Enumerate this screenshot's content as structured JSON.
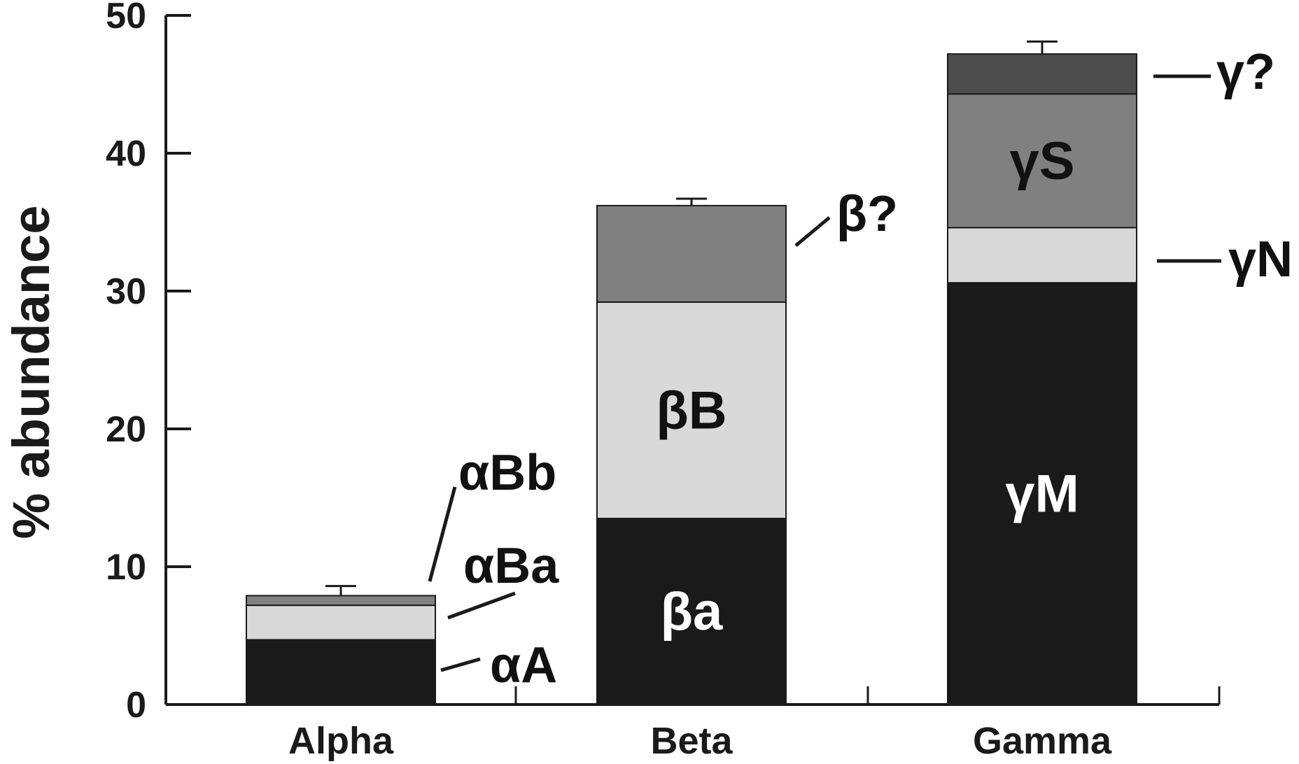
{
  "chart_data": {
    "type": "bar",
    "stacked": true,
    "ylabel": "% abundance",
    "xlabel": "",
    "ylim": [
      0,
      50
    ],
    "yticks": [
      "0",
      "10",
      "20",
      "30",
      "40",
      "50"
    ],
    "grid": false,
    "categories": [
      {
        "name": "Alpha",
        "error": 0.7,
        "segments": [
          {
            "label": "αA",
            "value": 4.7,
            "color": "#1a1a1a",
            "label_color": "#111111",
            "label_placement": "outside"
          },
          {
            "label": "αBa",
            "value": 2.5,
            "color": "#d9d9d9",
            "label_color": "#111111",
            "label_placement": "outside"
          },
          {
            "label": "αBb",
            "value": 0.7,
            "color": "#808080",
            "label_color": "#111111",
            "label_placement": "outside"
          }
        ]
      },
      {
        "name": "Beta",
        "error": 0.5,
        "segments": [
          {
            "label": "βa",
            "value": 13.5,
            "color": "#1a1a1a",
            "label_color": "#ffffff",
            "label_placement": "inside"
          },
          {
            "label": "βB",
            "value": 15.7,
            "color": "#d9d9d9",
            "label_color": "#111111",
            "label_placement": "inside"
          },
          {
            "label": "β?",
            "value": 7.0,
            "color": "#808080",
            "label_color": "#111111",
            "label_placement": "outside"
          }
        ]
      },
      {
        "name": "Gamma",
        "error": 0.9,
        "segments": [
          {
            "label": "γM",
            "value": 30.6,
            "color": "#1a1a1a",
            "label_color": "#ffffff",
            "label_placement": "inside"
          },
          {
            "label": "γN",
            "value": 4.0,
            "color": "#d9d9d9",
            "label_color": "#111111",
            "label_placement": "outside"
          },
          {
            "label": "γS",
            "value": 9.7,
            "color": "#808080",
            "label_color": "#111111",
            "label_placement": "inside"
          },
          {
            "label": "γ?",
            "value": 2.9,
            "color": "#4d4d4d",
            "label_color": "#111111",
            "label_placement": "outside"
          }
        ]
      }
    ]
  }
}
